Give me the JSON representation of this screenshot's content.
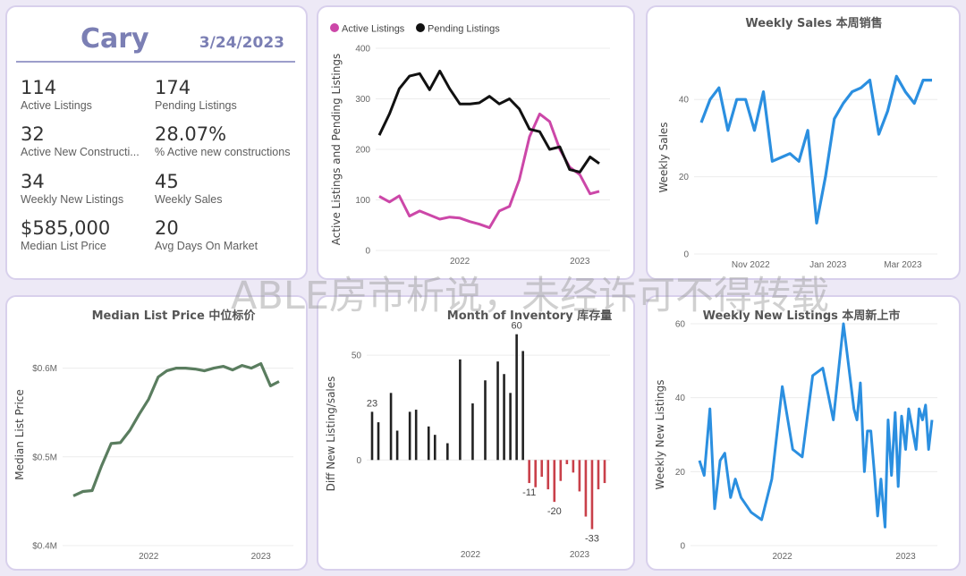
{
  "kpi": {
    "city": "Cary",
    "date": "3/24/2023",
    "items": [
      {
        "value": "114",
        "label": "Active Listings"
      },
      {
        "value": "174",
        "label": "Pending Listings"
      },
      {
        "value": "32",
        "label": "Active New Constructi..."
      },
      {
        "value": "28.07%",
        "label": "% Active new constructions"
      },
      {
        "value": "34",
        "label": "Weekly New Listings"
      },
      {
        "value": "45",
        "label": "Weekly Sales"
      },
      {
        "value": "$585,000",
        "label": "Median List Price"
      },
      {
        "value": "20",
        "label": "Avg Days On Market"
      }
    ]
  },
  "watermark": "ABLE房市析说，未经许可不得转载",
  "colors": {
    "active": "#cc47a8",
    "pending": "#111111",
    "blue": "#2b8fe0",
    "green": "#5a7d5f",
    "pos": "#222222",
    "neg": "#c9404a"
  },
  "chart_data": [
    {
      "id": "active_pending",
      "type": "line",
      "title": "",
      "legend_position": "top-left",
      "ylabel": "Active Listings and Pending Listings",
      "xlabel": "",
      "ylim": [
        0,
        400
      ],
      "yticks": [
        "0",
        "100",
        "200",
        "300",
        "400"
      ],
      "xticks": [
        "2022",
        "2023"
      ],
      "x": [
        "2021-05-01",
        "2021-06-01",
        "2021-07-01",
        "2021-08-01",
        "2021-09-01",
        "2021-10-01",
        "2021-11-01",
        "2021-12-01",
        "2022-01-01",
        "2022-02-01",
        "2022-03-01",
        "2022-04-01",
        "2022-05-01",
        "2022-06-01",
        "2022-07-01",
        "2022-08-01",
        "2022-09-01",
        "2022-10-01",
        "2022-11-01",
        "2022-12-01",
        "2023-01-01",
        "2023-02-01",
        "2023-03-01"
      ],
      "series": [
        {
          "name": "Active Listings",
          "values": [
            107,
            96,
            108,
            68,
            78,
            70,
            62,
            66,
            64,
            57,
            52,
            45,
            78,
            87,
            140,
            225,
            270,
            255,
            200,
            165,
            150,
            112,
            117
          ]
        },
        {
          "name": "Pending Listings",
          "values": [
            228,
            270,
            320,
            345,
            350,
            318,
            355,
            320,
            290,
            290,
            292,
            305,
            290,
            300,
            280,
            240,
            235,
            200,
            205,
            160,
            155,
            185,
            172
          ]
        }
      ]
    },
    {
      "id": "weekly_sales",
      "type": "line",
      "title": "Weekly Sales 本周销售",
      "ylabel": "Weekly Sales",
      "xlabel": "",
      "ylim": [
        0,
        50
      ],
      "yticks": [
        "0",
        "20",
        "40"
      ],
      "xticks": [
        "Nov 2022",
        "Jan 2023",
        "Mar 2023"
      ],
      "x": [
        "2022-09-23",
        "2022-09-30",
        "2022-10-07",
        "2022-10-14",
        "2022-10-21",
        "2022-10-28",
        "2022-11-04",
        "2022-11-11",
        "2022-11-18",
        "2022-11-25",
        "2022-12-02",
        "2022-12-09",
        "2022-12-16",
        "2022-12-23",
        "2022-12-30",
        "2023-01-06",
        "2023-01-13",
        "2023-01-20",
        "2023-01-27",
        "2023-02-03",
        "2023-02-10",
        "2023-02-17",
        "2023-02-24",
        "2023-03-03",
        "2023-03-10",
        "2023-03-17",
        "2023-03-24"
      ],
      "values": [
        34,
        40,
        43,
        32,
        40,
        40,
        32,
        42,
        24,
        25,
        26,
        24,
        32,
        8,
        20,
        35,
        39,
        42,
        43,
        45,
        31,
        37,
        46,
        42,
        39,
        45,
        45
      ],
      "series_color": "#2b8fe0"
    },
    {
      "id": "median_list_price",
      "type": "line",
      "title": "Median List Price  中位标价",
      "ylabel": "Median List Price",
      "xlabel": "",
      "ylim": [
        0.4,
        0.65
      ],
      "yticks": [
        "$0.4M",
        "$0.5M",
        "$0.6M"
      ],
      "xticks": [
        "2022",
        "2023"
      ],
      "x": [
        "2021-05-01",
        "2021-06-01",
        "2021-07-01",
        "2021-08-01",
        "2021-09-01",
        "2021-10-01",
        "2021-11-01",
        "2021-12-01",
        "2022-01-01",
        "2022-02-01",
        "2022-03-01",
        "2022-04-01",
        "2022-05-01",
        "2022-06-01",
        "2022-07-01",
        "2022-08-01",
        "2022-09-01",
        "2022-10-01",
        "2022-11-01",
        "2022-12-01",
        "2023-01-01",
        "2023-02-01",
        "2023-03-01"
      ],
      "values": [
        0.456,
        0.461,
        0.462,
        0.49,
        0.515,
        0.516,
        0.53,
        0.548,
        0.565,
        0.59,
        0.597,
        0.6,
        0.6,
        0.599,
        0.597,
        0.6,
        0.602,
        0.598,
        0.603,
        0.6,
        0.605,
        0.58,
        0.585
      ]
    },
    {
      "id": "month_of_inventory",
      "type": "bar",
      "title": "Month of Inventory 库存量",
      "ylabel": "Diff New Listing/sales",
      "xlabel": "",
      "ylim": [
        -40,
        65
      ],
      "yticks": [
        "0",
        "50"
      ],
      "xticks": [
        "2022",
        "2023"
      ],
      "data_labels": [
        {
          "text": "23",
          "value": 23
        },
        {
          "text": "60",
          "value": 60
        },
        {
          "text": "-20",
          "value": -20
        },
        {
          "text": "-11",
          "value": -11
        },
        {
          "text": "-33",
          "value": -33
        }
      ],
      "values": [
        23,
        18,
        0,
        32,
        14,
        0,
        23,
        24,
        0,
        16,
        12,
        0,
        8,
        0,
        48,
        0,
        27,
        0,
        38,
        0,
        47,
        41,
        32,
        60,
        52,
        -11,
        -13,
        -8,
        -14,
        -20,
        -10,
        -2,
        -6,
        -15,
        -27,
        -33,
        -14,
        -11
      ]
    },
    {
      "id": "weekly_new_listings",
      "type": "line",
      "title": "Weekly New Listings  本周新上市",
      "ylabel": "Weekly New Listings",
      "xlabel": "",
      "ylim": [
        0,
        60
      ],
      "yticks": [
        "0",
        "20",
        "40",
        "60"
      ],
      "xticks": [
        "2022",
        "2023"
      ],
      "x": [
        "2021-05-01",
        "2021-05-15",
        "2021-06-01",
        "2021-06-15",
        "2021-07-01",
        "2021-07-15",
        "2021-08-01",
        "2021-08-15",
        "2021-09-01",
        "2021-10-01",
        "2021-11-01",
        "2021-12-01",
        "2022-01-01",
        "2022-02-01",
        "2022-03-01",
        "2022-04-01",
        "2022-05-01",
        "2022-06-01",
        "2022-07-01",
        "2022-08-01",
        "2022-08-10",
        "2022-08-20",
        "2022-09-01",
        "2022-09-10",
        "2022-09-20",
        "2022-10-01",
        "2022-10-10",
        "2022-10-20",
        "2022-11-01",
        "2022-11-10",
        "2022-11-20",
        "2022-12-01",
        "2022-12-10",
        "2022-12-20",
        "2023-01-01",
        "2023-01-10",
        "2023-01-20",
        "2023-02-01",
        "2023-02-10",
        "2023-02-20",
        "2023-03-01",
        "2023-03-10",
        "2023-03-20"
      ],
      "values": [
        23,
        19,
        37,
        10,
        23,
        25,
        13,
        18,
        13,
        9,
        7,
        18,
        43,
        26,
        24,
        46,
        48,
        34,
        60,
        37,
        34,
        44,
        20,
        31,
        31,
        19,
        8,
        18,
        5,
        34,
        19,
        36,
        16,
        35,
        26,
        37,
        32,
        26,
        37,
        34,
        38,
        26,
        34
      ]
    }
  ]
}
